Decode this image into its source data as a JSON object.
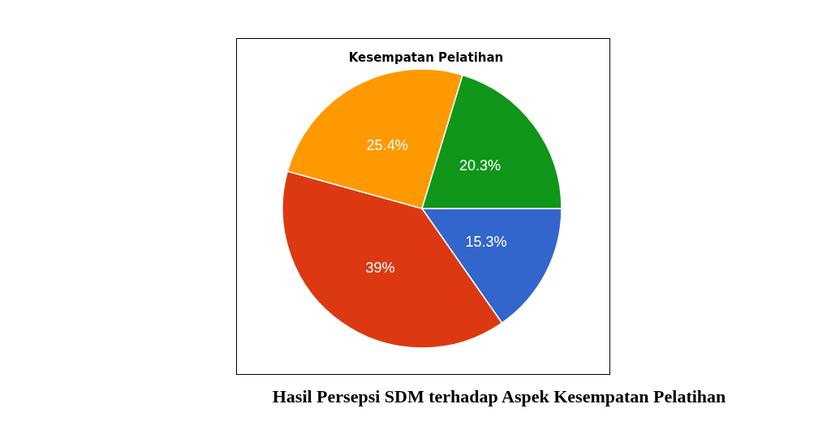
{
  "chart_data": {
    "type": "pie",
    "title": "Kesempatan Pelatihan",
    "categories": [
      null,
      null,
      null,
      null
    ],
    "values": [
      15.3,
      39,
      25.4,
      20.3
    ],
    "colors": [
      "#3366cc",
      "#dc3912",
      "#ff9900",
      "#109618"
    ],
    "value_labels": [
      "15.3%",
      "39%",
      "25.4%",
      "20.3%"
    ],
    "annotations": [
      "Hasil Persepsi SDM terhadap Aspek Kesempatan Pelatihan"
    ]
  }
}
